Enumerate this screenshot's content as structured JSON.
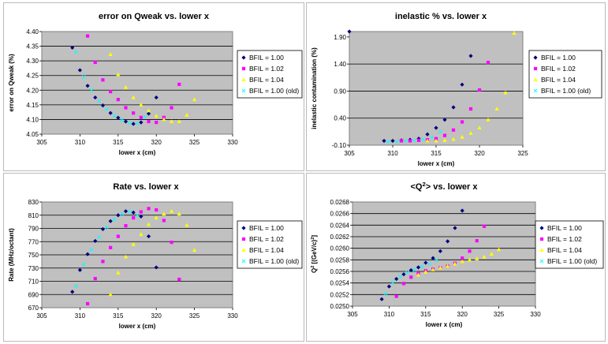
{
  "colors": {
    "plot_bg": "#c0c0c0",
    "grid": "#000000",
    "series": [
      "#000080",
      "#ff00ff",
      "#ffff00",
      "#00ffff"
    ]
  },
  "chart_data": [
    {
      "type": "scatter",
      "title": "error on Qweak vs. lower x",
      "title_parts": [
        {
          "text": "error on Qweak vs. lower x"
        }
      ],
      "xlabel": "lower x (cm)",
      "ylabel": "error on Qweak (%)",
      "xlim": [
        305,
        330
      ],
      "ylim": [
        4.05,
        4.4
      ],
      "xticks": [
        305,
        310,
        315,
        320,
        325,
        330
      ],
      "xtick_labels": [
        "305",
        "310",
        "315",
        "320",
        "325",
        "330"
      ],
      "yticks": [
        4.05,
        4.1,
        4.15,
        4.2,
        4.25,
        4.3,
        4.35,
        4.4
      ],
      "ytick_labels": [
        "4.05",
        "4.10",
        "4.15",
        "4.20",
        "4.25",
        "4.30",
        "4.35",
        "4.40"
      ],
      "grid": true,
      "legend_position": "right",
      "series": [
        {
          "name": "BFIL = 1.00",
          "x": [
            309,
            310,
            311,
            312,
            313,
            314,
            315,
            316,
            317,
            318,
            319,
            320
          ],
          "y": [
            4.345,
            4.268,
            4.215,
            4.175,
            4.148,
            4.122,
            4.106,
            4.093,
            4.085,
            4.09,
            4.12,
            4.175
          ]
        },
        {
          "name": "BFIL = 1.02",
          "x": [
            311,
            312,
            313,
            314,
            315,
            316,
            317,
            318,
            319,
            320,
            321,
            322,
            323
          ],
          "y": [
            4.385,
            4.295,
            4.235,
            4.195,
            4.168,
            4.14,
            4.122,
            4.107,
            4.093,
            4.09,
            4.107,
            4.14,
            4.22
          ]
        },
        {
          "name": "BFIL = 1.04",
          "x": [
            314,
            315,
            316,
            317,
            318,
            319,
            320,
            321,
            322,
            323,
            324,
            325
          ],
          "y": [
            4.322,
            4.253,
            4.21,
            4.175,
            4.15,
            4.13,
            4.112,
            4.1,
            4.093,
            4.093,
            4.115,
            4.168
          ]
        },
        {
          "name": "BFIL = 1.00 (old)",
          "x": [
            309.5,
            310.5,
            311.5,
            312.5,
            313.5,
            314.5,
            315.5,
            316.5,
            317.5,
            318.5
          ],
          "y": [
            4.33,
            4.245,
            4.2,
            4.163,
            4.135,
            4.113,
            4.098,
            4.088,
            4.087,
            4.11
          ]
        }
      ]
    },
    {
      "type": "scatter",
      "title": "inelastic % vs. lower x",
      "title_parts": [
        {
          "text": "inelastic % vs. lower x"
        }
      ],
      "xlabel": "lower x (cm)",
      "ylabel": "inelastic contamination (%)",
      "xlim": [
        305,
        325
      ],
      "ylim": [
        -0.1,
        2.0
      ],
      "xticks": [
        305,
        310,
        315,
        320,
        325
      ],
      "xtick_labels": [
        "305",
        "310",
        "315",
        "320",
        "325"
      ],
      "yticks": [
        -0.1,
        0.4,
        0.9,
        1.4,
        1.9
      ],
      "ytick_labels": [
        "-0.10",
        "0.40",
        "0.90",
        "1.40",
        "1.90"
      ],
      "grid": true,
      "legend_position": "right",
      "series": [
        {
          "name": "BFIL = 1.00",
          "x": [
            305,
            309,
            310,
            311,
            312,
            313,
            314,
            315,
            316,
            317,
            318,
            319
          ],
          "y": [
            2.0,
            -0.02,
            -0.02,
            -0.01,
            0.0,
            0.02,
            0.1,
            0.22,
            0.37,
            0.6,
            1.02,
            1.55
          ]
        },
        {
          "name": "BFIL = 1.02",
          "x": [
            311,
            312,
            313,
            314,
            315,
            316,
            317,
            318,
            319,
            320,
            321
          ],
          "y": [
            -0.02,
            -0.02,
            -0.01,
            0.0,
            0.02,
            0.08,
            0.18,
            0.33,
            0.57,
            0.92,
            1.43
          ]
        },
        {
          "name": "BFIL = 1.04",
          "x": [
            314,
            315,
            316,
            317,
            318,
            319,
            320,
            321,
            322,
            323,
            324
          ],
          "y": [
            -0.02,
            -0.02,
            -0.01,
            0.01,
            0.05,
            0.12,
            0.22,
            0.37,
            0.57,
            0.87,
            1.97
          ]
        },
        {
          "name": "BFIL = 1.00 (old)",
          "x": [
            309.5,
            310.5,
            311.5,
            312.5,
            313.5,
            314.5,
            315.5
          ],
          "y": [
            -0.03,
            -0.03,
            -0.02,
            -0.01,
            0.01,
            0.05,
            0.15
          ]
        }
      ]
    },
    {
      "type": "scatter",
      "title": "Rate vs. lower x",
      "title_parts": [
        {
          "text": "Rate vs. lower x"
        }
      ],
      "xlabel": "lower x (cm)",
      "ylabel": "Rate (MHz/octant)",
      "xlim": [
        305,
        330
      ],
      "ylim": [
        670,
        830
      ],
      "xticks": [
        305,
        310,
        315,
        320,
        325,
        330
      ],
      "xtick_labels": [
        "305",
        "310",
        "315",
        "320",
        "325",
        "330"
      ],
      "yticks": [
        670,
        690,
        710,
        730,
        750,
        770,
        790,
        810,
        830
      ],
      "ytick_labels": [
        "670",
        "690",
        "710",
        "730",
        "750",
        "770",
        "790",
        "810",
        "830"
      ],
      "grid": true,
      "legend_position": "right",
      "series": [
        {
          "name": "BFIL = 1.00",
          "x": [
            309,
            310,
            311,
            312,
            313,
            314,
            315,
            316,
            317,
            318,
            319,
            320
          ],
          "y": [
            694,
            727,
            751,
            771,
            789,
            801,
            810,
            816,
            814,
            808,
            778,
            731
          ]
        },
        {
          "name": "BFIL = 1.02",
          "x": [
            311,
            312,
            313,
            314,
            315,
            316,
            317,
            318,
            319,
            320,
            321,
            322,
            323
          ],
          "y": [
            676,
            714,
            740,
            761,
            778,
            794,
            806,
            815,
            820,
            818,
            802,
            769,
            713
          ]
        },
        {
          "name": "BFIL = 1.04",
          "x": [
            314,
            315,
            316,
            317,
            318,
            319,
            320,
            321,
            322,
            323,
            324,
            325
          ],
          "y": [
            690,
            723,
            747,
            766,
            781,
            796,
            806,
            812,
            816,
            812,
            795,
            757
          ]
        },
        {
          "name": "BFIL = 1.00 (old)",
          "x": [
            309.5,
            310.5,
            311.5,
            312.5,
            313.5,
            314.5,
            315.5,
            316.5,
            317.5
          ],
          "y": [
            703,
            735,
            758,
            777,
            792,
            804,
            812,
            815,
            810
          ]
        }
      ]
    },
    {
      "type": "scatter",
      "title": "<Q²> vs. lower x",
      "title_parts": [
        {
          "text": "<Q"
        },
        {
          "text": "2",
          "sup": true
        },
        {
          "text": "> vs. lower x"
        }
      ],
      "xlabel": "lower x (cm)",
      "ylabel_parts": [
        {
          "text": "Q"
        },
        {
          "text": "2",
          "sup": true
        },
        {
          "text": " [(GeV/c)"
        },
        {
          "text": "2",
          "sup": true
        },
        {
          "text": "]"
        }
      ],
      "xlim": [
        305,
        330
      ],
      "ylim": [
        0.025,
        0.0268
      ],
      "xticks": [
        305,
        310,
        315,
        320,
        325,
        330
      ],
      "xtick_labels": [
        "305",
        "310",
        "315",
        "320",
        "325",
        "330"
      ],
      "yticks": [
        0.025,
        0.0252,
        0.0254,
        0.0256,
        0.0258,
        0.026,
        0.0262,
        0.0264,
        0.0266,
        0.0268
      ],
      "ytick_labels": [
        "0.0250",
        "0.0252",
        "0.0254",
        "0.0256",
        "0.0258",
        "0.0260",
        "0.0262",
        "0.0264",
        "0.0266",
        "0.0268"
      ],
      "grid": true,
      "legend_position": "right",
      "series": [
        {
          "name": "BFIL = 1.00",
          "x": [
            309,
            310,
            311,
            312,
            313,
            314,
            315,
            316,
            317,
            318,
            319,
            320
          ],
          "y": [
            0.02512,
            0.02534,
            0.02547,
            0.02555,
            0.02562,
            0.02567,
            0.02575,
            0.02583,
            0.02595,
            0.02612,
            0.02635,
            0.02665
          ]
        },
        {
          "name": "BFIL = 1.02",
          "x": [
            311,
            312,
            313,
            314,
            315,
            316,
            317,
            318,
            319,
            320,
            321,
            322,
            323
          ],
          "y": [
            0.02517,
            0.02539,
            0.0255,
            0.02557,
            0.02561,
            0.02564,
            0.02566,
            0.02569,
            0.02574,
            0.02583,
            0.02595,
            0.02613,
            0.02638
          ]
        },
        {
          "name": "BFIL = 1.04",
          "x": [
            314,
            315,
            316,
            317,
            318,
            319,
            320,
            321,
            322,
            323,
            324,
            325
          ],
          "y": [
            0.02554,
            0.02559,
            0.02563,
            0.02566,
            0.02569,
            0.02573,
            0.02577,
            0.0258,
            0.02582,
            0.02585,
            0.0259,
            0.02598
          ]
        },
        {
          "name": "BFIL = 1.00 (old)",
          "x": [
            309.5,
            310.5,
            311.5,
            312.5,
            313.5,
            314.5,
            315.5,
            316.5
          ],
          "y": [
            0.02522,
            0.02541,
            0.02551,
            0.02558,
            0.02563,
            0.02568,
            0.02573,
            0.02579
          ]
        }
      ]
    }
  ]
}
